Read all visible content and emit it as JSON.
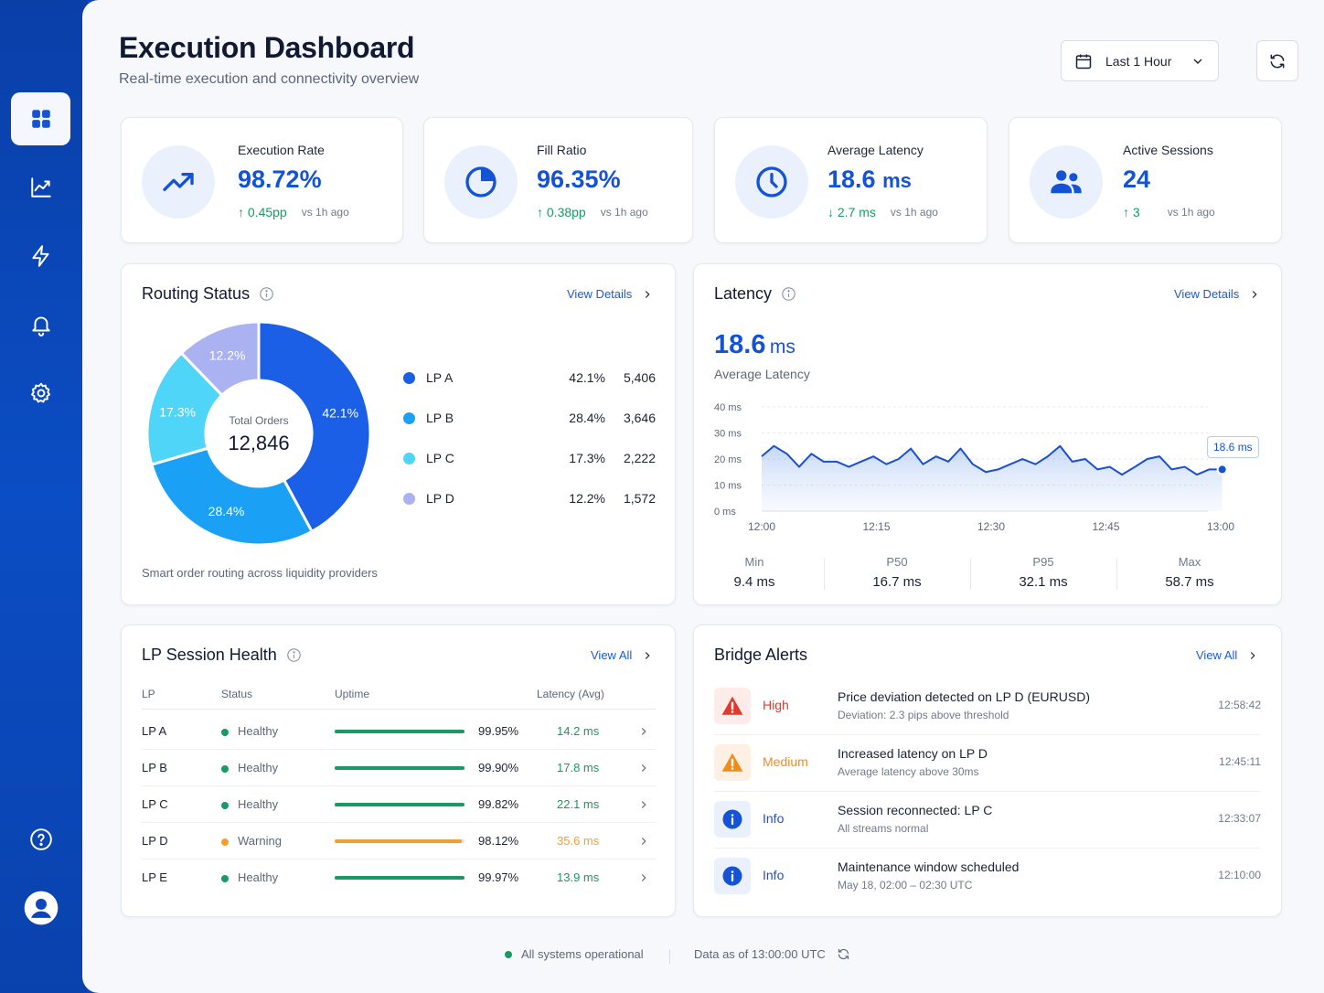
{
  "header": {
    "title": "Execution Dashboard",
    "subtitle": "Real-time execution and connectivity overview",
    "time_range": "Last 1 Hour"
  },
  "sidebar": {
    "items": [
      {
        "icon": "dashboard-grid-icon",
        "active": true
      },
      {
        "icon": "chart-line-icon",
        "active": false
      },
      {
        "icon": "lightning-icon",
        "active": false
      },
      {
        "icon": "bell-icon",
        "active": false
      },
      {
        "icon": "gear-icon",
        "active": false
      },
      {
        "icon": "help-icon",
        "active": false
      },
      {
        "icon": "user-avatar-icon",
        "active": false
      }
    ]
  },
  "kpis": [
    {
      "label": "Execution Rate",
      "value": "98.72%",
      "unit": "",
      "delta": "0.45pp",
      "direction": "up",
      "compare": "vs 1h ago",
      "icon": "trend-up-icon"
    },
    {
      "label": "Fill Ratio",
      "value": "96.35%",
      "unit": "",
      "delta": "0.38pp",
      "direction": "up",
      "compare": "vs 1h ago",
      "icon": "pie-chart-icon"
    },
    {
      "label": "Average Latency",
      "value": "18.6",
      "unit": "ms",
      "delta": "2.7 ms",
      "direction": "down",
      "compare": "vs 1h ago",
      "icon": "clock-icon"
    },
    {
      "label": "Active Sessions",
      "value": "24",
      "unit": "",
      "delta": "3",
      "direction": "up",
      "compare": "vs 1h ago",
      "icon": "users-icon"
    }
  ],
  "routing": {
    "title": "Routing Status",
    "link": "View Details",
    "center_label": "Total Orders",
    "center_value": "12,846",
    "footnote": "Smart order routing across liquidity providers",
    "providers": [
      {
        "name": "LP A",
        "pct": "42.1%",
        "count": "5,406",
        "color": "#1a5fe6"
      },
      {
        "name": "LP B",
        "pct": "28.4%",
        "count": "3,646",
        "color": "#1aa1f5"
      },
      {
        "name": "LP C",
        "pct": "17.3%",
        "count": "2,222",
        "color": "#4fd5f7"
      },
      {
        "name": "LP D",
        "pct": "12.2%",
        "count": "1,572",
        "color": "#aab2f2"
      }
    ]
  },
  "latency": {
    "title": "Latency",
    "link": "View Details",
    "value": "18.6",
    "unit": "ms",
    "label": "Average Latency",
    "current_tag": "18.6 ms",
    "stats": [
      {
        "label": "Min",
        "value": "9.4 ms"
      },
      {
        "label": "P50",
        "value": "16.7 ms"
      },
      {
        "label": "P95",
        "value": "32.1 ms"
      },
      {
        "label": "Max",
        "value": "58.7 ms"
      }
    ]
  },
  "chart_data": {
    "type": "area",
    "title": "Latency",
    "x_ticks": [
      "12:00",
      "12:15",
      "12:30",
      "12:45",
      "13:00"
    ],
    "y_ticks": [
      "0 ms",
      "10 ms",
      "20 ms",
      "30 ms",
      "40 ms"
    ],
    "ylim": [
      0,
      40
    ],
    "xlim_minutes": [
      0,
      60
    ],
    "grid": true,
    "series": [
      {
        "x": [
          0,
          1.6,
          3.3,
          4.9,
          6.5,
          8.1,
          9.8,
          11.4,
          13,
          14.6,
          16.3,
          17.9,
          19.5,
          21.1,
          22.8,
          24.4,
          26,
          27.6,
          29.3,
          30.9,
          32.5,
          34.1,
          35.8,
          37.4,
          39,
          40.6,
          42.3,
          43.9,
          45.5,
          47.1,
          48.8,
          50.4,
          52,
          53.6,
          55.3,
          56.9,
          58.5,
          60.2
        ],
        "y": [
          21,
          25,
          22,
          17,
          22,
          19,
          19,
          17,
          19,
          21,
          18,
          20,
          24,
          18,
          21,
          19,
          24,
          18,
          15,
          16,
          18,
          20,
          18,
          21,
          25,
          19,
          20,
          16,
          17,
          14,
          17,
          20,
          21,
          16,
          17,
          14,
          16,
          16
        ]
      }
    ]
  },
  "lp_health": {
    "title": "LP Session Health",
    "link": "View All",
    "columns": [
      "LP",
      "Status",
      "Uptime",
      "Latency (Avg)"
    ],
    "rows": [
      {
        "lp": "LP A",
        "status": "Healthy",
        "uptime": "99.95%",
        "uptime_value": 0.9995,
        "latency": "14.2 ms",
        "color": "#1a9a62"
      },
      {
        "lp": "LP B",
        "status": "Healthy",
        "uptime": "99.90%",
        "uptime_value": 0.999,
        "latency": "17.8 ms",
        "color": "#1a9a62"
      },
      {
        "lp": "LP C",
        "status": "Healthy",
        "uptime": "99.82%",
        "uptime_value": 0.9982,
        "latency": "22.1 ms",
        "color": "#1a9a62"
      },
      {
        "lp": "LP D",
        "status": "Warning",
        "uptime": "98.12%",
        "uptime_value": 0.9812,
        "latency": "35.6 ms",
        "color": "#f0a033"
      },
      {
        "lp": "LP E",
        "status": "Healthy",
        "uptime": "99.97%",
        "uptime_value": 0.9997,
        "latency": "13.9 ms",
        "color": "#1a9a62"
      }
    ]
  },
  "alerts": {
    "title": "Bridge Alerts",
    "link": "View All",
    "items": [
      {
        "severity": "High",
        "title": "Price deviation detected on LP D (EURUSD)",
        "detail": "Deviation: 2.3 pips above threshold",
        "time": "12:58:42",
        "icon": "alert-triangle-icon",
        "color": "#e5382c",
        "bg": "#fdecea"
      },
      {
        "severity": "Medium",
        "title": "Increased latency on LP D",
        "detail": "Average latency above 30ms",
        "time": "12:45:11",
        "icon": "warning-triangle-icon",
        "color": "#f08c1c",
        "bg": "#fef1e3"
      },
      {
        "severity": "Info",
        "title": "Session reconnected: LP C",
        "detail": "All streams normal",
        "time": "12:33:07",
        "icon": "info-circle-icon",
        "color": "#1553d6",
        "bg": "#eaf1fc"
      },
      {
        "severity": "Info",
        "title": "Maintenance window scheduled",
        "detail": "May 18, 02:00 – 02:30 UTC",
        "time": "12:10:00",
        "icon": "info-circle-icon",
        "color": "#1553d6",
        "bg": "#eaf1fc"
      }
    ]
  },
  "footer": {
    "status": "All systems operational",
    "data_as_of": "Data as of 13:00:00 UTC"
  }
}
